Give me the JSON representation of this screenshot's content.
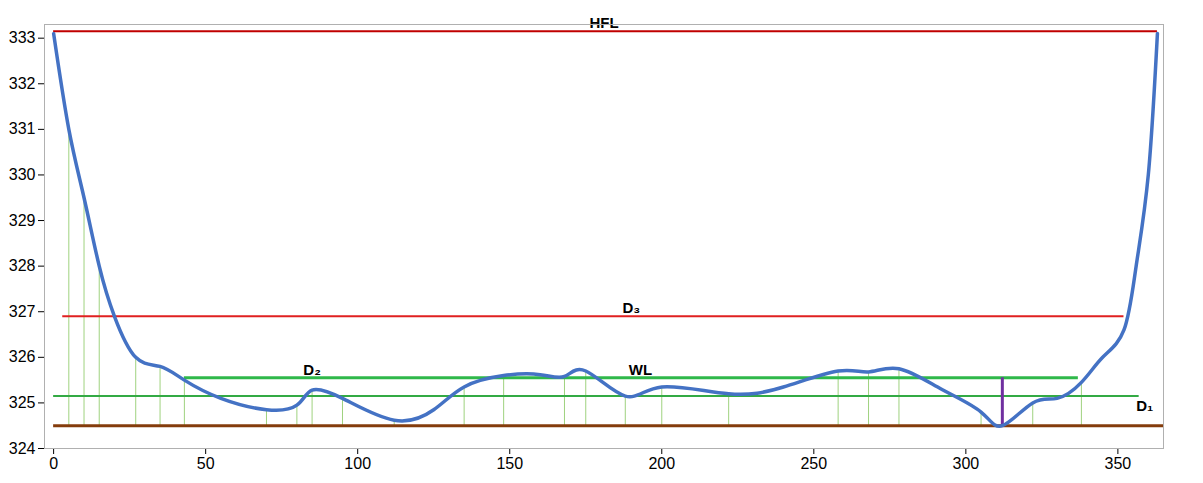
{
  "chart_data": {
    "type": "line",
    "x": [
      0,
      5,
      10,
      15,
      20,
      27,
      35,
      43,
      55,
      70,
      80,
      85,
      95,
      112,
      125,
      135,
      148,
      160,
      168,
      175,
      188,
      200,
      222,
      240,
      258,
      268,
      278,
      292,
      305,
      312,
      322,
      330,
      338,
      345,
      352,
      356,
      360,
      363
    ],
    "values": [
      333.1,
      331,
      329.5,
      328,
      326.9,
      326.0,
      325.8,
      325.5,
      325.1,
      324.85,
      324.95,
      325.28,
      325.1,
      324.62,
      324.85,
      325.35,
      325.6,
      325.62,
      325.58,
      325.7,
      325.15,
      325.35,
      325.2,
      325.35,
      325.7,
      325.68,
      325.75,
      325.3,
      324.8,
      324.5,
      325.0,
      325.1,
      325.45,
      326.0,
      326.6,
      328,
      330,
      333.1
    ],
    "color": "#4472c4",
    "survey_x": [
      5,
      10,
      15,
      27,
      35,
      43,
      70,
      80,
      85,
      95,
      112,
      135,
      148,
      168,
      175,
      188,
      200,
      222,
      258,
      268,
      278,
      305,
      312,
      322,
      338
    ],
    "vertical_from": 324.5,
    "levels": [
      {
        "y": 333.15,
        "x": [
          0,
          363
        ],
        "color": "#c00000"
      },
      {
        "y": 326.9,
        "x": [
          3,
          352
        ],
        "color": "#e02020"
      },
      {
        "y": 325.55,
        "x": [
          43,
          337
        ],
        "color": "#2fb84a"
      },
      {
        "y": 325.15,
        "x": [
          0,
          357
        ],
        "color": "#33aa44"
      },
      {
        "y": 324.5,
        "x": [
          0,
          365
        ],
        "color": "#843c0c"
      }
    ],
    "depth_marker": {
      "x": 312,
      "y": [
        324.5,
        325.55
      ],
      "color": "#7030a0"
    },
    "annotations": [
      {
        "text": "HFL",
        "x": 181,
        "y": 333.15
      },
      {
        "text": "D₃",
        "x": 190,
        "y": 326.9
      },
      {
        "text": "D₂",
        "x": 85,
        "y": 325.55
      },
      {
        "text": "WL",
        "x": 193,
        "y": 325.55
      },
      {
        "text": "D₁",
        "x": 356,
        "y": 325.15
      }
    ],
    "xlim": [
      -3,
      365
    ],
    "ylim": [
      324,
      333.3
    ],
    "xticks": [
      0,
      50,
      100,
      150,
      200,
      250,
      300,
      350
    ],
    "yticks": [
      324,
      325,
      326,
      327,
      328,
      329,
      330,
      331,
      332,
      333
    ],
    "grid": false
  }
}
